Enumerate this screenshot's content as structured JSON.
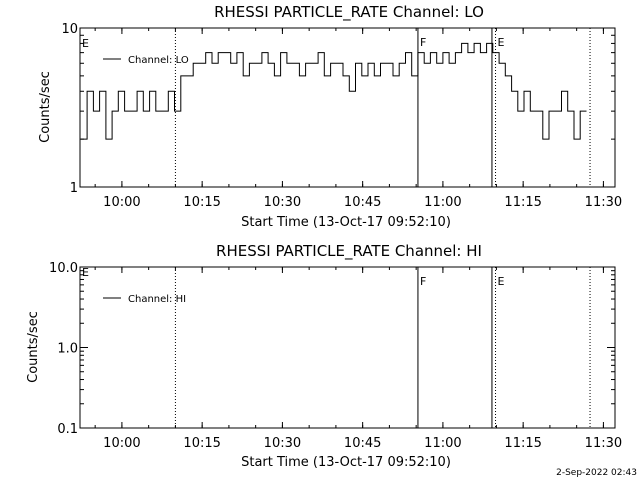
{
  "footer_timestamp": "2-Sep-2022 02:43",
  "chart_data": [
    {
      "type": "line",
      "title": "RHESSI PARTICLE_RATE Channel: LO",
      "xlabel": "Start Time (13-Oct-17 09:52:10)",
      "ylabel": "Counts/sec",
      "yscale": "log",
      "ylim": [
        1,
        10
      ],
      "y_ticks": [
        "1",
        "10"
      ],
      "xlim": [
        "09:52:10",
        "11:32:10"
      ],
      "x_ticks": [
        "10:00",
        "10:15",
        "10:30",
        "10:45",
        "11:00",
        "11:15",
        "11:30"
      ],
      "legend": {
        "label": "Channel: LO",
        "position": "top-left"
      },
      "vlines": [
        {
          "time": "10:10:00",
          "style": "dotted",
          "label": ""
        },
        {
          "time": "10:55:20",
          "style": "solid",
          "label": "F"
        },
        {
          "time": "11:09:10",
          "style": "solid",
          "label": ""
        },
        {
          "time": "11:09:50",
          "style": "dotted",
          "label": "E"
        },
        {
          "time": "11:27:30",
          "style": "dotted",
          "label": ""
        }
      ],
      "left_marker": "E",
      "series": [
        {
          "name": "Channel: LO",
          "x": [
            "09:52:20",
            "09:53:30",
            "09:54:40",
            "09:55:50",
            "09:57:00",
            "09:58:10",
            "09:59:20",
            "10:00:30",
            "10:01:40",
            "10:02:50",
            "10:04:00",
            "10:05:10",
            "10:06:20",
            "10:07:30",
            "10:08:40",
            "10:09:50",
            "10:11:00",
            "10:12:10",
            "10:13:20",
            "10:14:30",
            "10:15:40",
            "10:16:50",
            "10:18:00",
            "10:19:10",
            "10:20:20",
            "10:21:30",
            "10:22:40",
            "10:23:50",
            "10:25:00",
            "10:26:10",
            "10:27:20",
            "10:28:30",
            "10:29:40",
            "10:30:50",
            "10:32:00",
            "10:33:10",
            "10:34:20",
            "10:35:30",
            "10:36:40",
            "10:37:50",
            "10:39:00",
            "10:40:10",
            "10:41:20",
            "10:42:30",
            "10:43:40",
            "10:44:50",
            "10:46:00",
            "10:47:10",
            "10:48:20",
            "10:49:30",
            "10:50:40",
            "10:51:50",
            "10:53:00",
            "10:54:10",
            "10:55:20",
            "10:56:30",
            "10:57:40",
            "10:58:50",
            "11:00:00",
            "11:01:10",
            "11:02:20",
            "11:03:30",
            "11:04:40",
            "11:05:50",
            "11:07:00",
            "11:08:10",
            "11:09:20",
            "11:10:30",
            "11:11:40",
            "11:12:50",
            "11:14:00",
            "11:15:10",
            "11:16:20",
            "11:17:30",
            "11:18:40",
            "11:19:50",
            "11:21:00",
            "11:22:10",
            "11:23:20",
            "11:24:30",
            "11:25:40",
            "11:26:50"
          ],
          "values": [
            2.0,
            4.0,
            3.0,
            4.0,
            2.0,
            3.0,
            4.0,
            3.0,
            3.0,
            4.0,
            3.0,
            4.0,
            3.0,
            3.0,
            4.0,
            3.0,
            5.0,
            5.0,
            6.0,
            6.0,
            7.0,
            6.0,
            7.0,
            7.0,
            6.0,
            7.0,
            5.0,
            6.0,
            6.0,
            7.0,
            6.0,
            5.0,
            7.0,
            6.0,
            6.0,
            5.0,
            6.0,
            6.0,
            7.0,
            5.0,
            6.0,
            6.0,
            5.0,
            4.0,
            6.0,
            5.0,
            6.0,
            5.0,
            6.0,
            6.0,
            5.0,
            6.0,
            7.0,
            5.0,
            7.0,
            6.0,
            7.0,
            6.0,
            7.0,
            6.0,
            7.0,
            8.0,
            7.0,
            8.0,
            7.0,
            8.0,
            7.0,
            6.0,
            5.0,
            4.0,
            3.0,
            4.0,
            3.0,
            3.0,
            2.0,
            3.0,
            3.0,
            4.0,
            3.0,
            2.0,
            3.0,
            3.0
          ]
        }
      ]
    },
    {
      "type": "line",
      "title": "RHESSI PARTICLE_RATE Channel: HI",
      "xlabel": "Start Time (13-Oct-17 09:52:10)",
      "ylabel": "Counts/sec",
      "yscale": "log",
      "ylim": [
        0.1,
        10
      ],
      "y_ticks": [
        "0.1",
        "1.0",
        "10.0"
      ],
      "xlim": [
        "09:52:10",
        "11:32:10"
      ],
      "x_ticks": [
        "10:00",
        "10:15",
        "10:30",
        "10:45",
        "11:00",
        "11:15",
        "11:30"
      ],
      "legend": {
        "label": "Channel: HI",
        "position": "top-left"
      },
      "vlines": [
        {
          "time": "10:10:00",
          "style": "dotted",
          "label": ""
        },
        {
          "time": "10:55:20",
          "style": "solid",
          "label": "F"
        },
        {
          "time": "11:09:10",
          "style": "solid",
          "label": ""
        },
        {
          "time": "11:09:50",
          "style": "dotted",
          "label": "E"
        },
        {
          "time": "11:27:30",
          "style": "dotted",
          "label": ""
        }
      ],
      "left_marker": "E",
      "series": [
        {
          "name": "Channel: HI",
          "x": [],
          "values": []
        }
      ]
    }
  ]
}
